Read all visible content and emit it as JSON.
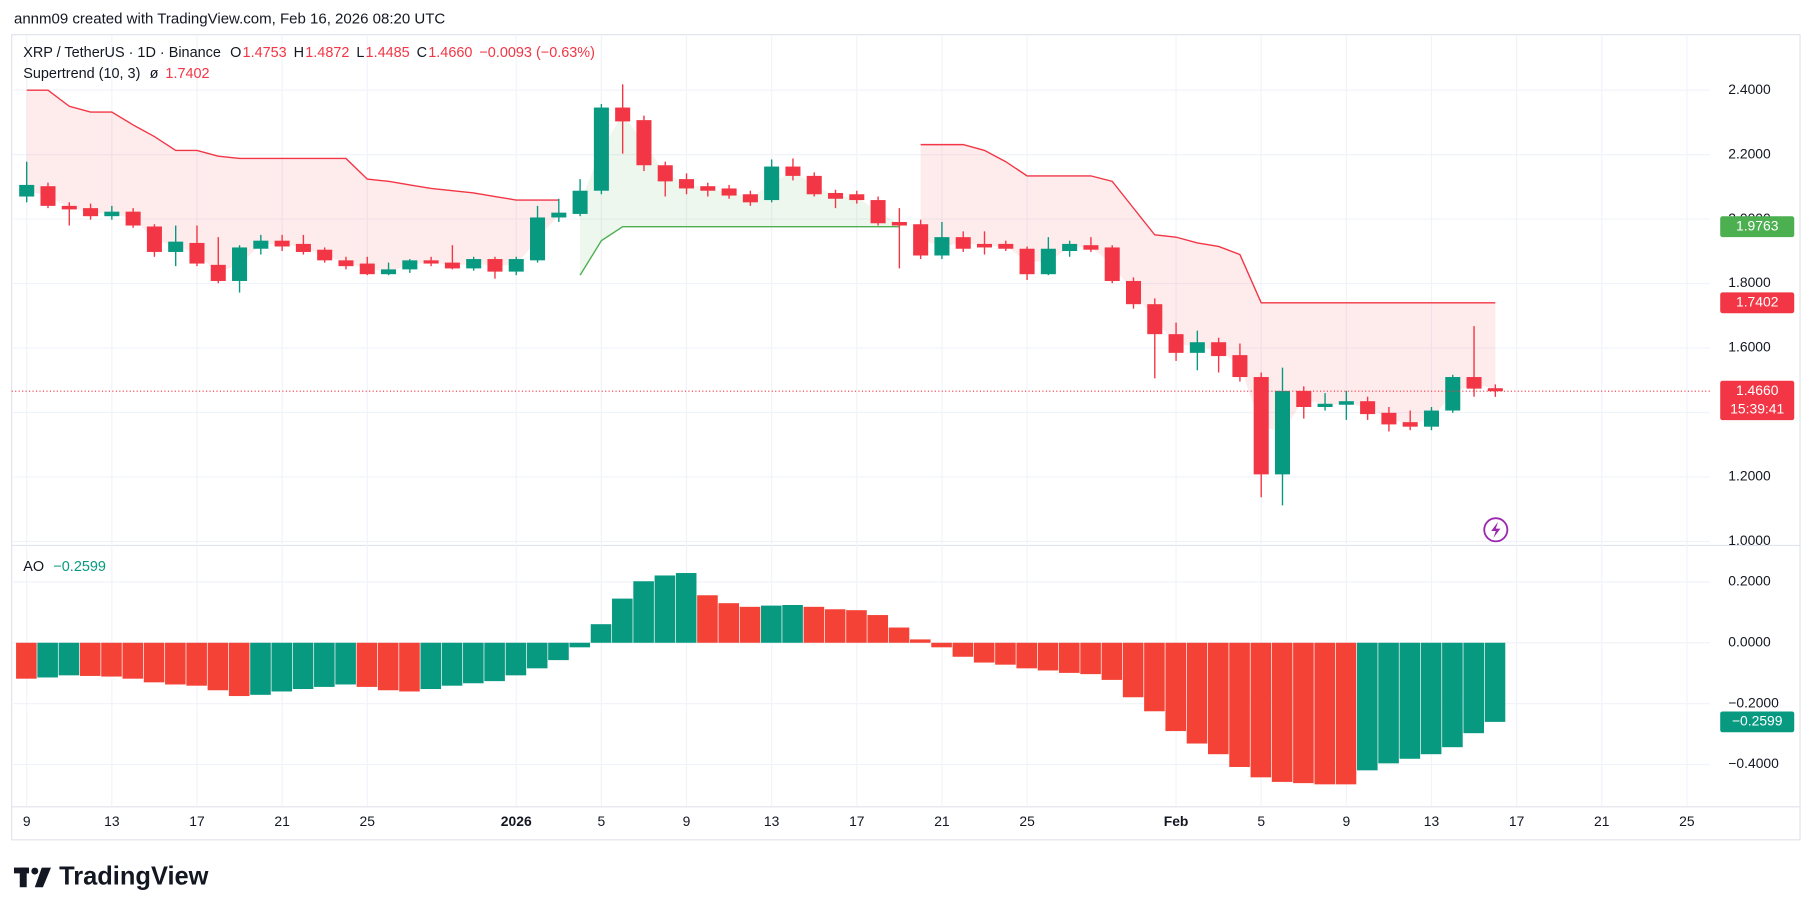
{
  "header": "annm09 created with TradingView.com, Feb 16, 2026 08:20 UTC",
  "brand": "TradingView",
  "chart_data": [
    {
      "type": "candlestick",
      "title": "XRP / TetherUS · 1D · Binance",
      "ohlc_legend": [
        {
          "label": "O",
          "value": "1.4753"
        },
        {
          "label": "H",
          "value": "1.4872"
        },
        {
          "label": "L",
          "value": "1.4485"
        },
        {
          "label": "C",
          "value": "1.4660"
        }
      ],
      "change": "−0.0093 (−0.63%)",
      "indicator_label": "Supertrend (10, 3)",
      "indicator_symbol": "ø",
      "indicator_value": "1.7402",
      "categories": [
        "9",
        null,
        null,
        null,
        "13",
        null,
        null,
        null,
        "17",
        null,
        null,
        null,
        "21",
        null,
        null,
        null,
        "25",
        null,
        null,
        null,
        null,
        null,
        null,
        "2026",
        null,
        null,
        null,
        "5",
        null,
        null,
        null,
        "9",
        null,
        null,
        null,
        "13",
        null,
        null,
        null,
        "17",
        null,
        null,
        null,
        "21",
        null,
        null,
        null,
        "25",
        null,
        null,
        null,
        null,
        null,
        null,
        "Feb",
        null,
        null,
        null,
        "5",
        null,
        null,
        null,
        "9",
        null,
        null,
        null,
        "13",
        null,
        null,
        null,
        "17",
        null,
        null,
        null,
        "21",
        null,
        null,
        null,
        "25"
      ],
      "open": [
        2.07,
        2.102,
        2.041,
        2.034,
        2.009,
        2.023,
        1.977,
        1.898,
        1.926,
        1.858,
        1.808,
        1.908,
        1.933,
        1.923,
        1.905,
        1.872,
        1.862,
        1.829,
        1.844,
        1.872,
        1.865,
        1.847,
        1.876,
        1.837,
        1.872,
        2.005,
        2.016,
        2.088,
        2.346,
        2.307,
        2.167,
        2.124,
        2.102,
        2.095,
        2.077,
        2.059,
        2.163,
        2.134,
        2.081,
        2.077,
        2.059,
        1.991,
        1.984,
        1.887,
        1.944,
        1.923,
        1.923,
        1.908,
        1.829,
        1.901,
        1.919,
        1.912,
        1.808,
        1.736,
        1.643,
        1.585,
        1.618,
        1.578,
        1.51,
        1.208,
        1.467,
        1.417,
        1.424,
        1.435,
        1.399,
        1.37,
        1.356,
        1.406,
        1.51,
        1.4753,
        null,
        null,
        null,
        null,
        null,
        null,
        null,
        null,
        null
      ],
      "high": [
        2.178,
        2.113,
        2.052,
        2.048,
        2.041,
        2.034,
        1.984,
        1.98,
        1.98,
        1.944,
        1.919,
        1.951,
        1.951,
        1.951,
        1.912,
        1.883,
        1.883,
        1.865,
        1.876,
        1.883,
        1.919,
        1.883,
        1.883,
        1.883,
        2.041,
        2.063,
        2.124,
        2.357,
        2.418,
        2.321,
        2.178,
        2.142,
        2.113,
        2.106,
        2.088,
        2.185,
        2.188,
        2.145,
        2.091,
        2.088,
        2.07,
        2.034,
        1.998,
        1.991,
        1.962,
        1.962,
        1.933,
        1.915,
        1.944,
        1.933,
        1.944,
        1.919,
        1.819,
        1.754,
        1.679,
        1.654,
        1.632,
        1.614,
        1.524,
        1.539,
        1.481,
        1.46,
        1.467,
        1.449,
        1.417,
        1.406,
        1.417,
        1.517,
        1.668,
        1.4872,
        null,
        null,
        null,
        null,
        null,
        null,
        null,
        null,
        null
      ],
      "low": [
        2.052,
        2.034,
        1.98,
        1.998,
        1.998,
        1.973,
        1.883,
        1.854,
        1.854,
        1.801,
        1.772,
        1.89,
        1.901,
        1.89,
        1.865,
        1.844,
        1.826,
        1.826,
        1.833,
        1.854,
        1.844,
        1.84,
        1.815,
        1.826,
        1.865,
        1.991,
        2.009,
        2.077,
        2.203,
        2.149,
        2.07,
        2.077,
        2.07,
        2.063,
        2.041,
        2.052,
        2.12,
        2.07,
        2.034,
        2.048,
        1.98,
        1.847,
        1.876,
        1.876,
        1.898,
        1.89,
        1.901,
        1.811,
        1.826,
        1.883,
        1.898,
        1.801,
        1.722,
        1.506,
        1.56,
        1.531,
        1.524,
        1.496,
        1.137,
        1.112,
        1.381,
        1.406,
        1.377,
        1.377,
        1.341,
        1.345,
        1.345,
        1.399,
        1.449,
        1.4485,
        null,
        null,
        null,
        null,
        null,
        null,
        null,
        null,
        null
      ],
      "close": [
        2.106,
        2.041,
        2.03,
        2.009,
        2.023,
        1.98,
        1.898,
        1.93,
        1.862,
        1.808,
        1.912,
        1.933,
        1.915,
        1.898,
        1.872,
        1.854,
        1.829,
        1.844,
        1.872,
        1.862,
        1.847,
        1.876,
        1.837,
        1.876,
        2.005,
        2.02,
        2.088,
        2.346,
        2.303,
        2.167,
        2.117,
        2.095,
        2.088,
        2.073,
        2.052,
        2.163,
        2.134,
        2.077,
        2.063,
        2.059,
        1.987,
        1.98,
        1.887,
        1.944,
        1.908,
        1.912,
        1.908,
        1.829,
        1.908,
        1.923,
        1.905,
        1.808,
        1.736,
        1.643,
        1.585,
        1.618,
        1.575,
        1.51,
        1.208,
        1.467,
        1.417,
        1.427,
        1.435,
        1.395,
        1.363,
        1.356,
        1.406,
        1.51,
        1.474,
        1.466,
        null,
        null,
        null,
        null,
        null,
        null,
        null,
        null,
        null
      ],
      "colors": {
        "up": "#089981",
        "down": "#f23645"
      },
      "overlays": [
        {
          "color": "#f23645",
          "fill": "rgba(242,54,69,0.1)",
          "values": [
            2.4,
            2.4,
            2.35,
            2.332,
            2.332,
            2.292,
            2.256,
            2.213,
            2.213,
            2.195,
            2.188,
            2.188,
            2.188,
            2.188,
            2.188,
            2.188,
            2.124,
            2.117,
            2.106,
            2.095,
            2.088,
            2.081,
            2.07,
            2.059,
            2.059,
            2.059,
            null,
            null,
            null,
            null,
            null,
            null,
            null,
            null,
            null,
            null,
            null,
            null,
            null,
            null,
            null,
            null,
            2.231,
            2.231,
            2.231,
            2.213,
            2.178,
            2.134,
            2.134,
            2.134,
            2.134,
            2.117,
            2.034,
            1.951,
            1.944,
            1.926,
            1.915,
            1.89,
            1.7402,
            1.7402,
            1.7402,
            1.7402,
            1.7402,
            1.7402,
            1.7402,
            1.7402,
            1.7402,
            1.7402,
            1.7402,
            1.7402,
            null,
            null,
            null,
            null,
            null,
            null,
            null,
            null,
            null
          ]
        },
        {
          "color": "#4caf50",
          "fill": "rgba(76,175,80,0.1)",
          "values": [
            null,
            null,
            null,
            null,
            null,
            null,
            null,
            null,
            null,
            null,
            null,
            null,
            null,
            null,
            null,
            null,
            null,
            null,
            null,
            null,
            null,
            null,
            null,
            null,
            null,
            null,
            1.826,
            1.933,
            1.9763,
            1.9763,
            1.9763,
            1.9763,
            1.9763,
            1.9763,
            1.9763,
            1.9763,
            1.9763,
            1.9763,
            1.9763,
            1.9763,
            1.9763,
            1.9763,
            null,
            null,
            null,
            null,
            null,
            null,
            null,
            null,
            null,
            null,
            null,
            null,
            null,
            null,
            null,
            null,
            null,
            null,
            null,
            null,
            null,
            null,
            null,
            null,
            null,
            null,
            null,
            null,
            null,
            null,
            null,
            null,
            null,
            null,
            null,
            null,
            null
          ]
        }
      ],
      "price_labels": [
        {
          "value": 1.9763,
          "label": "1.9763",
          "color": "#4caf50"
        },
        {
          "value": 1.7402,
          "label": "1.7402",
          "color": "#f23645"
        },
        {
          "value": 1.466,
          "label": "1.4660",
          "sub": "15:39:41",
          "color": "#f23645"
        }
      ],
      "ylim": [
        0.993,
        2.572
      ],
      "yticks": [
        {
          "value": 1.0,
          "label": "1.0000"
        },
        {
          "value": 1.2,
          "label": "1.2000"
        },
        {
          "value": 1.4,
          "label": "1.4000"
        },
        {
          "value": 1.6,
          "label": "1.6000"
        },
        {
          "value": 1.8,
          "label": "1.8000"
        },
        {
          "value": 2.0,
          "label": "2.0000"
        },
        {
          "value": 2.2,
          "label": "2.2000"
        },
        {
          "value": 2.4,
          "label": "2.4000"
        }
      ],
      "grid": true
    },
    {
      "type": "histogram",
      "title": "AO",
      "legend_value": "−0.2599",
      "values": [
        -0.118,
        -0.114,
        -0.107,
        -0.109,
        -0.111,
        -0.118,
        -0.13,
        -0.137,
        -0.141,
        -0.156,
        -0.175,
        -0.171,
        -0.16,
        -0.152,
        -0.145,
        -0.137,
        -0.145,
        -0.156,
        -0.16,
        -0.152,
        -0.141,
        -0.133,
        -0.126,
        -0.107,
        -0.084,
        -0.057,
        -0.015,
        0.061,
        0.145,
        0.202,
        0.221,
        0.229,
        0.156,
        0.13,
        0.118,
        0.122,
        0.124,
        0.118,
        0.11,
        0.107,
        0.091,
        0.05,
        0.011,
        -0.015,
        -0.046,
        -0.065,
        -0.072,
        -0.084,
        -0.091,
        -0.099,
        -0.103,
        -0.122,
        -0.179,
        -0.225,
        -0.29,
        -0.331,
        -0.366,
        -0.408,
        -0.442,
        -0.457,
        -0.461,
        -0.465,
        -0.465,
        -0.419,
        -0.396,
        -0.381,
        -0.366,
        -0.343,
        -0.297,
        -0.2599,
        null,
        null,
        null,
        null,
        null,
        null,
        null,
        null,
        null
      ],
      "colors": {
        "up": "#089981",
        "down": "#f44336"
      },
      "price_labels": [
        {
          "value": -0.2599,
          "label": "−0.2599",
          "color": "#089981"
        }
      ],
      "ylim": [
        -0.537,
        0.314
      ],
      "yticks": [
        {
          "value": 0.2,
          "label": "0.2000"
        },
        {
          "value": 0,
          "label": "0.0000"
        },
        {
          "value": -0.2,
          "label": "−0.2000"
        },
        {
          "value": -0.4,
          "label": "−0.4000"
        }
      ],
      "grid": true
    }
  ]
}
